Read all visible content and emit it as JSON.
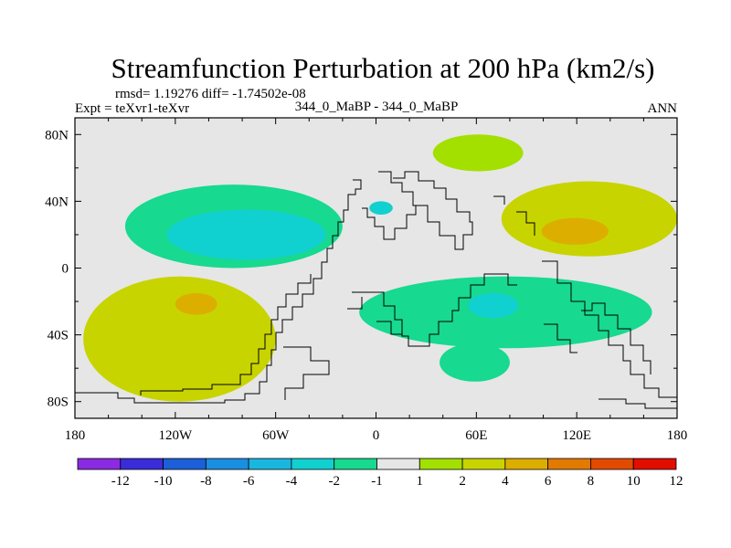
{
  "chart_data": {
    "type": "heatmap",
    "title": "Streamfunction Perturbation at 200 hPa (km2/s)",
    "subtitle_stats": "rmsd= 1.19276 diff= -1.74502e-08",
    "experiment_label": "Expt = teXvr1-teXvr",
    "case_label": "344_0_MaBP - 344_0_MaBP",
    "season_label": "ANN",
    "xlabel": "",
    "ylabel": "",
    "xlim": [
      -180,
      180
    ],
    "ylim": [
      -90,
      90
    ],
    "x_ticks": [
      {
        "value": -180,
        "label": "180"
      },
      {
        "value": -120,
        "label": "120W"
      },
      {
        "value": -60,
        "label": "60W"
      },
      {
        "value": 0,
        "label": "0"
      },
      {
        "value": 60,
        "label": "60E"
      },
      {
        "value": 120,
        "label": "120E"
      },
      {
        "value": 180,
        "label": "180"
      }
    ],
    "y_ticks": [
      {
        "value": 80,
        "label": "80N"
      },
      {
        "value": 40,
        "label": "40N"
      },
      {
        "value": 0,
        "label": "0"
      },
      {
        "value": -40,
        "label": "40S"
      },
      {
        "value": -80,
        "label": "80S"
      }
    ],
    "levels": [
      -12,
      -10,
      -8,
      -6,
      -4,
      -2,
      -1,
      1,
      2,
      4,
      6,
      8,
      10,
      12
    ],
    "colorbar_labels": [
      "-12",
      "-10",
      "-8",
      "-6",
      "-4",
      "-2",
      "-1",
      "1",
      "2",
      "4",
      "6",
      "8",
      "10",
      "12"
    ],
    "colors": [
      "#8a2be2",
      "#3b2cd9",
      "#1c5fd9",
      "#1a8ee0",
      "#19b7e0",
      "#11d0d0",
      "#17d98f",
      "#e6e6e6",
      "#a3e000",
      "#c8d400",
      "#dcae00",
      "#e27a00",
      "#e24a00",
      "#e10e00"
    ],
    "fields": [
      {
        "name": "north-pacific-negative",
        "value": -1.5,
        "lon_range": [
          -150,
          -20
        ],
        "lat_range": [
          0,
          50
        ]
      },
      {
        "name": "north-pacific-core",
        "value": -2.5,
        "lon_range": [
          -125,
          -30
        ],
        "lat_range": [
          5,
          35
        ]
      },
      {
        "name": "atlantic-negative-core",
        "value": -2.5,
        "lon_range": [
          -4,
          10
        ],
        "lat_range": [
          32,
          40
        ]
      },
      {
        "name": "south-pacific-positive",
        "value": 2.5,
        "lon_range": [
          -175,
          -60
        ],
        "lat_range": [
          -80,
          -5
        ]
      },
      {
        "name": "south-pacific-core",
        "value": 5.0,
        "lon_range": [
          -120,
          -95
        ],
        "lat_range": [
          -28,
          -15
        ]
      },
      {
        "name": "south-indian-negative",
        "value": -1.5,
        "lon_range": [
          -10,
          165
        ],
        "lat_range": [
          -48,
          -5
        ]
      },
      {
        "name": "south-indian-core",
        "value": -2.5,
        "lon_range": [
          55,
          85
        ],
        "lat_range": [
          -30,
          -15
        ]
      },
      {
        "name": "south-atlantic-negative",
        "value": -1.5,
        "lon_range": [
          38,
          80
        ],
        "lat_range": [
          -68,
          -45
        ]
      },
      {
        "name": "siberia-positive",
        "value": 1.5,
        "lon_range": [
          34,
          88
        ],
        "lat_range": [
          58,
          80
        ]
      },
      {
        "name": "north-pacific-positive",
        "value": 2.5,
        "lon_range": [
          75,
          180
        ],
        "lat_range": [
          7,
          52
        ]
      },
      {
        "name": "north-pacific-positive-core",
        "value": 4.5,
        "lon_range": [
          99,
          139
        ],
        "lat_range": [
          14,
          30
        ]
      }
    ]
  }
}
